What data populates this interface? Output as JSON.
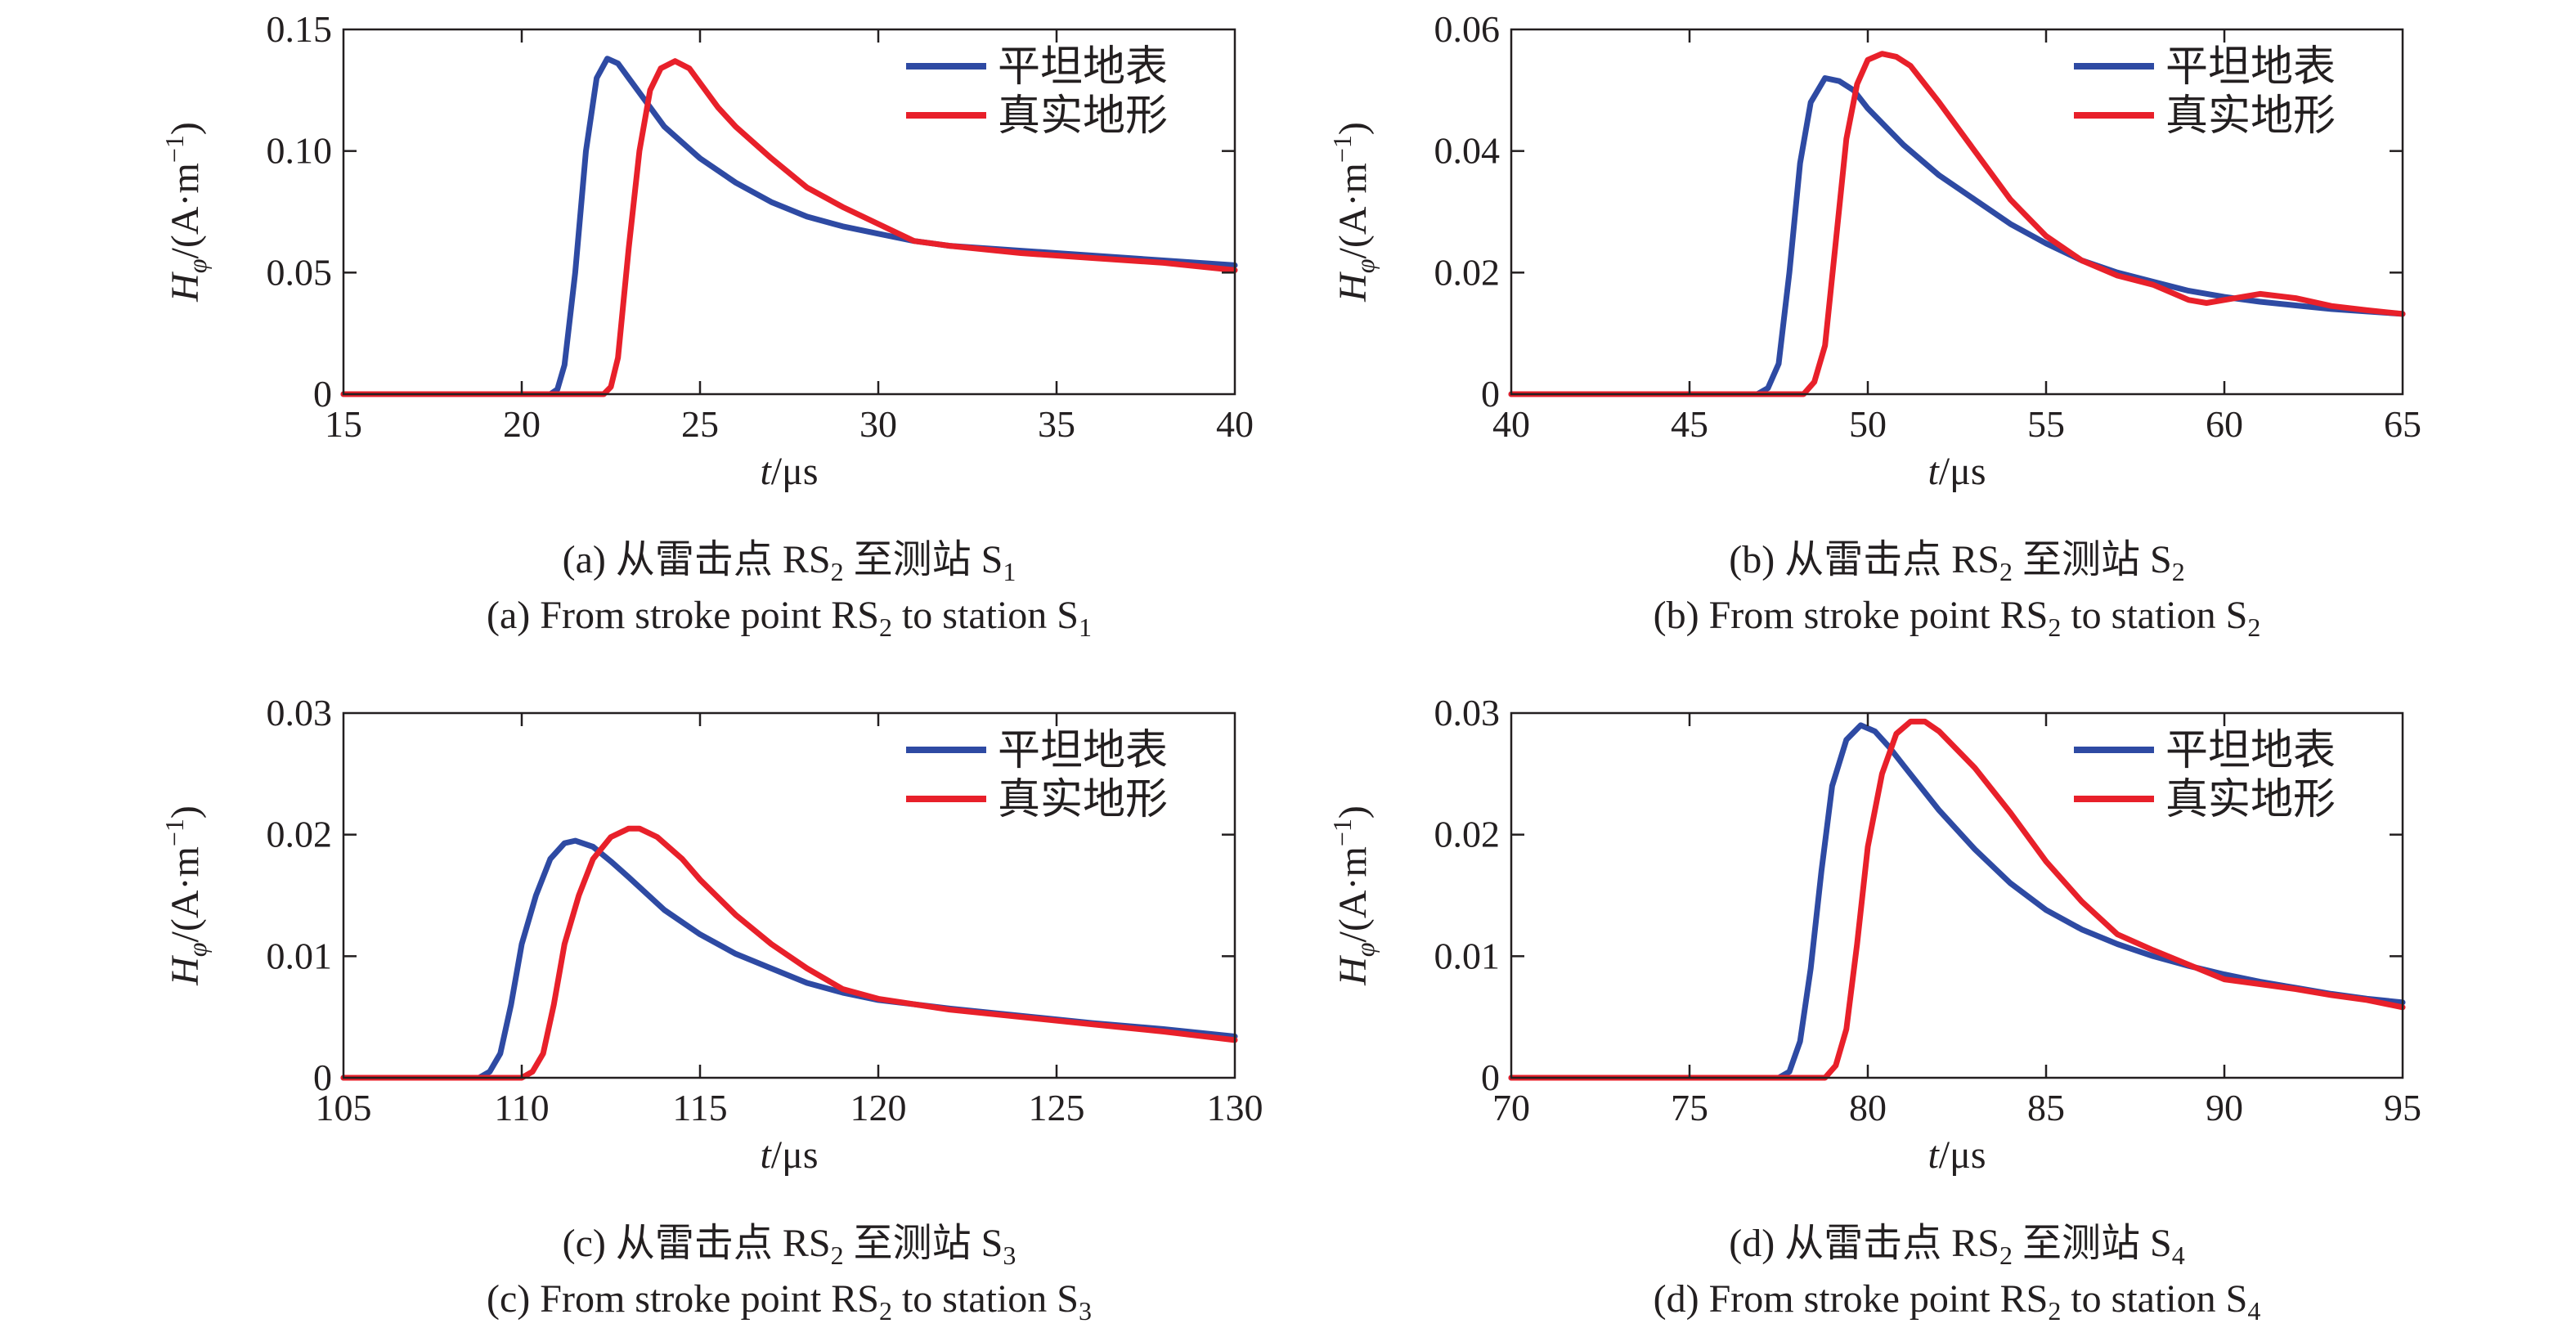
{
  "chart_data": [
    {
      "type": "line",
      "ylabel_symbol": "H",
      "ylabel_sub": "φ",
      "ylabel_unit": "/(A·m",
      "ylabel_exp": "−1",
      "ylabel_close": ")",
      "xlabel_symbol": "t",
      "xlabel_unit": "/μs",
      "xlim": [
        15,
        40
      ],
      "ylim": [
        0,
        0.15
      ],
      "xticks": [
        "15",
        "20",
        "25",
        "30",
        "35",
        "40"
      ],
      "yticks": [
        "0",
        "0.05",
        "0.10",
        "0.15"
      ],
      "legend_position": "top-right",
      "caption_cn_prefix": "(a) 从雷击点 RS",
      "caption_cn_sub1": "2",
      "caption_cn_mid": " 至测站 S",
      "caption_cn_sub2": "1",
      "caption_en_prefix": "(a) From stroke point RS",
      "caption_en_sub1": "2",
      "caption_en_mid": " to station S",
      "caption_en_sub2": "1",
      "series": [
        {
          "name": "平坦地表",
          "color": "#2e4aa3",
          "x": [
            15,
            20.8,
            21.0,
            21.2,
            21.5,
            21.8,
            22.1,
            22.4,
            22.7,
            23,
            23.5,
            24,
            25,
            26,
            27,
            28,
            29,
            30,
            31,
            32,
            34,
            36,
            38,
            40
          ],
          "y": [
            0,
            0,
            0.002,
            0.012,
            0.05,
            0.1,
            0.13,
            0.138,
            0.136,
            0.13,
            0.12,
            0.11,
            0.097,
            0.087,
            0.079,
            0.073,
            0.069,
            0.066,
            0.063,
            0.061,
            0.059,
            0.057,
            0.055,
            0.053
          ]
        },
        {
          "name": "真实地形",
          "color": "#e8202a",
          "x": [
            15,
            22.3,
            22.5,
            22.7,
            23,
            23.3,
            23.6,
            23.9,
            24.3,
            24.7,
            25,
            25.5,
            26,
            27,
            28,
            29,
            30,
            31,
            32,
            34,
            36,
            38,
            40
          ],
          "y": [
            0,
            0,
            0.003,
            0.015,
            0.06,
            0.1,
            0.125,
            0.134,
            0.137,
            0.134,
            0.128,
            0.118,
            0.11,
            0.097,
            0.085,
            0.077,
            0.07,
            0.063,
            0.061,
            0.058,
            0.056,
            0.054,
            0.051
          ]
        }
      ]
    },
    {
      "type": "line",
      "ylabel_symbol": "H",
      "ylabel_sub": "φ",
      "ylabel_unit": "/(A·m",
      "ylabel_exp": "−1",
      "ylabel_close": ")",
      "xlabel_symbol": "t",
      "xlabel_unit": "/μs",
      "xlim": [
        40,
        65
      ],
      "ylim": [
        0,
        0.06
      ],
      "xticks": [
        "40",
        "45",
        "50",
        "55",
        "60",
        "65"
      ],
      "yticks": [
        "0",
        "0.02",
        "0.04",
        "0.06"
      ],
      "legend_position": "top-right",
      "caption_cn_prefix": "(b) 从雷击点 RS",
      "caption_cn_sub1": "2",
      "caption_cn_mid": " 至测站 S",
      "caption_cn_sub2": "2",
      "caption_en_prefix": "(b) From stroke point RS",
      "caption_en_sub1": "2",
      "caption_en_mid": " to station S",
      "caption_en_sub2": "2",
      "series": [
        {
          "name": "平坦地表",
          "color": "#2e4aa3",
          "x": [
            40,
            46.9,
            47.2,
            47.5,
            47.8,
            48.1,
            48.4,
            48.8,
            49.2,
            49.6,
            50,
            51,
            52,
            53,
            54,
            55,
            56,
            57,
            58,
            59,
            60,
            61,
            62,
            63,
            64,
            65
          ],
          "y": [
            0,
            0,
            0.001,
            0.005,
            0.02,
            0.038,
            0.048,
            0.052,
            0.0515,
            0.05,
            0.047,
            0.041,
            0.036,
            0.032,
            0.028,
            0.0248,
            0.022,
            0.02,
            0.0185,
            0.017,
            0.016,
            0.0152,
            0.0146,
            0.014,
            0.0136,
            0.0132
          ]
        },
        {
          "name": "真实地形",
          "color": "#e8202a",
          "x": [
            40,
            48.2,
            48.5,
            48.8,
            49.1,
            49.4,
            49.7,
            50,
            50.4,
            50.8,
            51.2,
            52,
            53,
            54,
            55,
            56,
            57,
            58,
            59,
            59.5,
            60,
            61,
            62,
            63,
            64,
            65
          ],
          "y": [
            0,
            0,
            0.002,
            0.008,
            0.025,
            0.042,
            0.051,
            0.055,
            0.056,
            0.0555,
            0.054,
            0.048,
            0.04,
            0.032,
            0.026,
            0.022,
            0.0195,
            0.018,
            0.0155,
            0.015,
            0.0155,
            0.0165,
            0.0158,
            0.0145,
            0.0138,
            0.0132
          ]
        }
      ]
    },
    {
      "type": "line",
      "ylabel_symbol": "H",
      "ylabel_sub": "φ",
      "ylabel_unit": "/(A·m",
      "ylabel_exp": "−1",
      "ylabel_close": ")",
      "xlabel_symbol": "t",
      "xlabel_unit": "/μs",
      "xlim": [
        105,
        130
      ],
      "ylim": [
        0,
        0.03
      ],
      "xticks": [
        "105",
        "110",
        "115",
        "120",
        "125",
        "130"
      ],
      "yticks": [
        "0",
        "0.01",
        "0.02",
        "0.03"
      ],
      "legend_position": "top-right",
      "caption_cn_prefix": "(c) 从雷击点 RS",
      "caption_cn_sub1": "2",
      "caption_cn_mid": " 至测站 S",
      "caption_cn_sub2": "3",
      "caption_en_prefix": "(c) From stroke point RS",
      "caption_en_sub1": "2",
      "caption_en_mid": " to station S",
      "caption_en_sub2": "3",
      "series": [
        {
          "name": "平坦地表",
          "color": "#2e4aa3",
          "x": [
            105,
            108.8,
            109.1,
            109.4,
            109.7,
            110,
            110.4,
            110.8,
            111.2,
            111.5,
            112,
            112.5,
            113,
            114,
            115,
            116,
            117,
            118,
            119,
            120,
            122,
            124,
            126,
            128,
            130
          ],
          "y": [
            0,
            0,
            0.0005,
            0.002,
            0.006,
            0.011,
            0.015,
            0.018,
            0.0193,
            0.0195,
            0.019,
            0.0178,
            0.0165,
            0.0138,
            0.0118,
            0.0102,
            0.009,
            0.0078,
            0.007,
            0.0064,
            0.0057,
            0.0051,
            0.0045,
            0.004,
            0.0034
          ]
        },
        {
          "name": "真实地形",
          "color": "#e8202a",
          "x": [
            105,
            110.0,
            110.3,
            110.6,
            110.9,
            111.2,
            111.6,
            112,
            112.5,
            113,
            113.3,
            113.8,
            114.5,
            115,
            116,
            117,
            118,
            119,
            120,
            122,
            124,
            126,
            128,
            130
          ],
          "y": [
            0,
            0,
            0.0005,
            0.002,
            0.006,
            0.011,
            0.015,
            0.018,
            0.0198,
            0.0205,
            0.0205,
            0.0198,
            0.018,
            0.0163,
            0.0134,
            0.011,
            0.009,
            0.0073,
            0.0065,
            0.0056,
            0.005,
            0.0044,
            0.0038,
            0.0031
          ]
        }
      ]
    },
    {
      "type": "line",
      "ylabel_symbol": "H",
      "ylabel_sub": "φ",
      "ylabel_unit": "/(A·m",
      "ylabel_exp": "−1",
      "ylabel_close": ")",
      "xlabel_symbol": "t",
      "xlabel_unit": "/μs",
      "xlim": [
        70,
        95
      ],
      "ylim": [
        0,
        0.03
      ],
      "xticks": [
        "70",
        "75",
        "80",
        "85",
        "90",
        "95"
      ],
      "yticks": [
        "0",
        "0.01",
        "0.02",
        "0.03"
      ],
      "legend_position": "top-right",
      "caption_cn_prefix": "(d) 从雷击点 RS",
      "caption_cn_sub1": "2",
      "caption_cn_mid": " 至测站 S",
      "caption_cn_sub2": "4",
      "caption_en_prefix": "(d) From stroke point RS",
      "caption_en_sub1": "2",
      "caption_en_mid": " to station S",
      "caption_en_sub2": "4",
      "series": [
        {
          "name": "平坦地表",
          "color": "#2e4aa3",
          "x": [
            70,
            77.5,
            77.8,
            78.1,
            78.4,
            78.7,
            79,
            79.4,
            79.8,
            80.2,
            80.6,
            81,
            82,
            83,
            84,
            85,
            86,
            87,
            88,
            89,
            90,
            91,
            92,
            93,
            94,
            95
          ],
          "y": [
            0,
            0,
            0.0005,
            0.003,
            0.009,
            0.017,
            0.024,
            0.0278,
            0.029,
            0.0285,
            0.0272,
            0.0257,
            0.022,
            0.0188,
            0.016,
            0.0138,
            0.0122,
            0.011,
            0.01,
            0.0092,
            0.0085,
            0.0079,
            0.0074,
            0.0069,
            0.0065,
            0.0062
          ]
        },
        {
          "name": "真实地形",
          "color": "#e8202a",
          "x": [
            70,
            78.8,
            79.1,
            79.4,
            79.7,
            80,
            80.4,
            80.8,
            81.2,
            81.6,
            82,
            83,
            84,
            85,
            86,
            87,
            88,
            89,
            90,
            91,
            92,
            93,
            94,
            95
          ],
          "y": [
            0,
            0,
            0.001,
            0.004,
            0.011,
            0.019,
            0.025,
            0.0283,
            0.0293,
            0.0293,
            0.0285,
            0.0255,
            0.0218,
            0.0178,
            0.0145,
            0.0118,
            0.0105,
            0.0093,
            0.0081,
            0.0077,
            0.0073,
            0.0068,
            0.0064,
            0.0058
          ]
        }
      ]
    }
  ]
}
